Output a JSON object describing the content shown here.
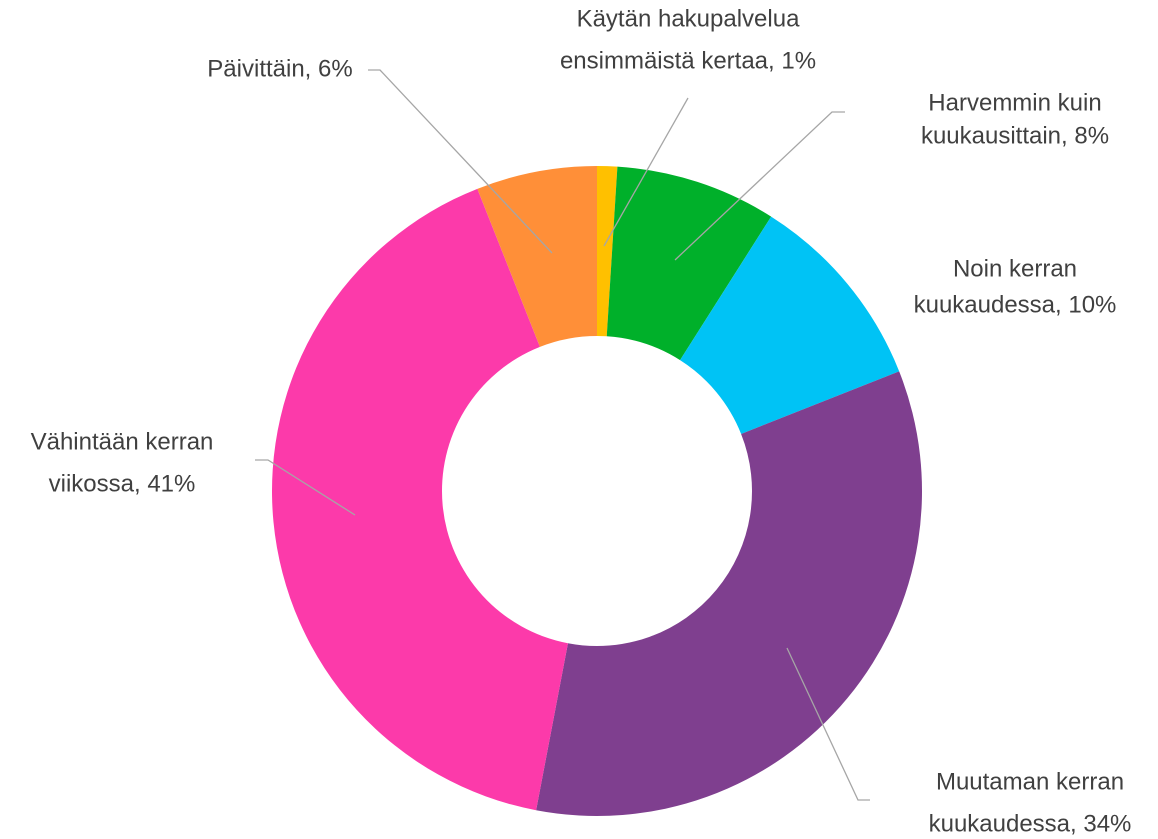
{
  "chart_data": {
    "type": "donut",
    "values": [
      1,
      8,
      10,
      34,
      41,
      6
    ],
    "value_labels": [
      [
        "Käytän hakupalvelua",
        "ensimmäistä kertaa, 1%"
      ],
      [
        "Harvemmin kuin",
        "kuukausittain, 8%"
      ],
      [
        "Noin kerran",
        "kuukaudessa, 10%"
      ],
      [
        "Muutaman kerran",
        "kuukaudessa, 34%"
      ],
      [
        "Vähintään kerran",
        "viikossa, 41%"
      ],
      [
        "Päivittäin, 6%"
      ]
    ],
    "colors": [
      "#FFC000",
      "#00B02A",
      "#00C3F5",
      "#7F3F8F",
      "#FC3AAA",
      "#FF8F38"
    ]
  }
}
